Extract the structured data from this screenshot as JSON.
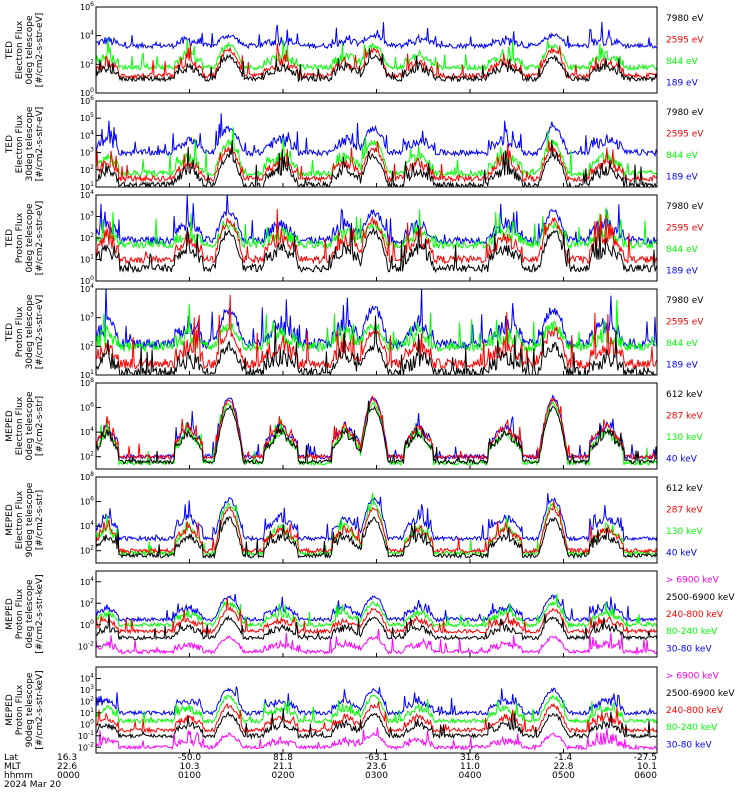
{
  "chart_data": {
    "type": "line",
    "colors": {
      "blue": "#0000ff",
      "red": "#ff0000",
      "green": "#00ff00",
      "black": "#000000",
      "magenta": "#ff00ff"
    },
    "x_ticks": [
      "0000",
      "0100",
      "0200",
      "0300",
      "0400",
      "0500",
      "0600"
    ],
    "footer": {
      "row_labels": [
        "Lat",
        "MLT",
        "hhmm"
      ],
      "date": "2024 Mar 20",
      "lat": [
        "16.3",
        "-50.0",
        "81.8",
        "-63.1",
        "31.6",
        "-1.4",
        "-27.5"
      ],
      "mlt": [
        "22.6",
        "10.3",
        "21.1",
        "23.6",
        "11.0",
        "22.8",
        "10.1"
      ],
      "hhmm": [
        "0000",
        "0100",
        "0200",
        "0300",
        "0400",
        "0500",
        "0600"
      ]
    },
    "panels": [
      {
        "ylabel": [
          "TED",
          "Electron Flux",
          "0deg telescope",
          "[#/cm2-s-str-eV]"
        ],
        "yticks": [
          {
            "exp": "6",
            "v": 6
          },
          {
            "exp": "4",
            "v": 4
          },
          {
            "exp": "2",
            "v": 2
          },
          {
            "exp": "0",
            "v": 0
          }
        ],
        "ylim": [
          0,
          6
        ],
        "legend": [
          {
            "text": "7980 eV",
            "color": "black"
          },
          {
            "text": "2595 eV",
            "color": "red"
          },
          {
            "text": "844 eV",
            "color": "green"
          },
          {
            "text": "189 eV",
            "color": "blue"
          }
        ],
        "series": [
          {
            "color": "blue",
            "base": 3.3,
            "peak": 4.0
          },
          {
            "color": "green",
            "base": 1.8,
            "peak": 3.3
          },
          {
            "color": "red",
            "base": 1.2,
            "peak": 3.0
          },
          {
            "color": "black",
            "base": 1.0,
            "peak": 2.5
          }
        ]
      },
      {
        "ylabel": [
          "TED",
          "Electron Flux",
          "30deg telescope",
          "[#/cm2-s-str-eV]"
        ],
        "yticks": [
          {
            "exp": "6",
            "v": 6
          },
          {
            "exp": "5",
            "v": 5
          },
          {
            "exp": "4",
            "v": 4
          },
          {
            "exp": "3",
            "v": 3
          },
          {
            "exp": "2",
            "v": 2
          },
          {
            "exp": "1",
            "v": 1
          }
        ],
        "ylim": [
          1,
          6
        ],
        "legend": [
          {
            "text": "7980 eV",
            "color": "black"
          },
          {
            "text": "2595 eV",
            "color": "red"
          },
          {
            "text": "844 eV",
            "color": "green"
          },
          {
            "text": "189 eV",
            "color": "blue"
          }
        ],
        "series": [
          {
            "color": "blue",
            "base": 3.0,
            "peak": 4.4
          },
          {
            "color": "green",
            "base": 1.8,
            "peak": 3.6
          },
          {
            "color": "red",
            "base": 1.5,
            "peak": 3.2
          },
          {
            "color": "black",
            "base": 1.1,
            "peak": 2.8
          }
        ]
      },
      {
        "ylabel": [
          "TED",
          "Proton Flux",
          "0deg telescope",
          "[#/cm2-s-str-eV]"
        ],
        "yticks": [
          {
            "exp": "4",
            "v": 4
          },
          {
            "exp": "3",
            "v": 3
          },
          {
            "exp": "2",
            "v": 2
          },
          {
            "exp": "1",
            "v": 1
          },
          {
            "exp": "0",
            "v": 0
          }
        ],
        "ylim": [
          0,
          4
        ],
        "legend": [
          {
            "text": "7980 eV",
            "color": "black"
          },
          {
            "text": "2595 eV",
            "color": "red"
          },
          {
            "text": "844 eV",
            "color": "green"
          },
          {
            "text": "189 eV",
            "color": "blue"
          }
        ],
        "series": [
          {
            "color": "blue",
            "base": 1.9,
            "peak": 3.2
          },
          {
            "color": "green",
            "base": 1.7,
            "peak": 2.6
          },
          {
            "color": "red",
            "base": 1.0,
            "peak": 2.8
          },
          {
            "color": "black",
            "base": 0.6,
            "peak": 2.3
          }
        ]
      },
      {
        "ylabel": [
          "TED",
          "Proton Flux",
          "30deg telescope",
          "[#/cm2-s-str-eV]"
        ],
        "yticks": [
          {
            "exp": "4",
            "v": 4
          },
          {
            "exp": "3",
            "v": 3
          },
          {
            "exp": "2",
            "v": 2
          },
          {
            "exp": "1",
            "v": 1
          }
        ],
        "ylim": [
          1,
          4
        ],
        "legend": [
          {
            "text": "7980 eV",
            "color": "black"
          },
          {
            "text": "2595 eV",
            "color": "red"
          },
          {
            "text": "844 eV",
            "color": "green"
          },
          {
            "text": "189 eV",
            "color": "blue"
          }
        ],
        "series": [
          {
            "color": "blue",
            "base": 2.1,
            "peak": 3.3
          },
          {
            "color": "green",
            "base": 2.0,
            "peak": 2.7
          },
          {
            "color": "red",
            "base": 1.4,
            "peak": 2.5
          },
          {
            "color": "black",
            "base": 1.1,
            "peak": 2.0
          }
        ]
      },
      {
        "ylabel": [
          "MEPED",
          "Electron Flux",
          "0deg telescope",
          "[#/cm2-s-str]"
        ],
        "yticks": [
          {
            "exp": "8",
            "v": 8
          },
          {
            "exp": "6",
            "v": 6
          },
          {
            "exp": "4",
            "v": 4
          },
          {
            "exp": "2",
            "v": 2
          }
        ],
        "ylim": [
          1,
          8
        ],
        "legend": [
          {
            "text": "612 keV",
            "color": "black"
          },
          {
            "text": "287 keV",
            "color": "red"
          },
          {
            "text": "130 keV",
            "color": "green"
          },
          {
            "text": "40 keV",
            "color": "blue"
          }
        ],
        "series": [
          {
            "color": "blue",
            "base": 2.0,
            "peak": 6.8
          },
          {
            "color": "green",
            "base": 1.5,
            "peak": 6.3
          },
          {
            "color": "red",
            "base": 2.0,
            "peak": 6.6
          },
          {
            "color": "black",
            "base": 1.6,
            "peak": 6.0
          }
        ]
      },
      {
        "ylabel": [
          "MEPED",
          "Electron Flux",
          "90deg telescope",
          "[#/cm2-s-str]"
        ],
        "yticks": [
          {
            "exp": "8",
            "v": 8
          },
          {
            "exp": "6",
            "v": 6
          },
          {
            "exp": "4",
            "v": 4
          },
          {
            "exp": "2",
            "v": 2
          }
        ],
        "ylim": [
          1,
          8
        ],
        "legend": [
          {
            "text": "612 keV",
            "color": "black"
          },
          {
            "text": "287 keV",
            "color": "red"
          },
          {
            "text": "130 keV",
            "color": "green"
          },
          {
            "text": "40 keV",
            "color": "blue"
          }
        ],
        "series": [
          {
            "color": "blue",
            "base": 3.0,
            "peak": 6.2
          },
          {
            "color": "green",
            "base": 1.8,
            "peak": 5.8
          },
          {
            "color": "red",
            "base": 2.0,
            "peak": 5.4
          },
          {
            "color": "black",
            "base": 1.6,
            "peak": 4.6
          }
        ]
      },
      {
        "ylabel": [
          "MEPED",
          "Proton Flux",
          "0deg telescope",
          "[#/cm2-s-str-keV]"
        ],
        "yticks": [
          {
            "exp": "4",
            "v": 4
          },
          {
            "exp": "2",
            "v": 2
          },
          {
            "exp": "0",
            "v": 0
          },
          {
            "exp": "-2",
            "v": -2
          }
        ],
        "ylim": [
          -3,
          5
        ],
        "legend": [
          {
            "text": "> 6900 keV",
            "color": "magenta"
          },
          {
            "text": "2500-6900 keV",
            "color": "black"
          },
          {
            "text": "240-800 keV",
            "color": "red"
          },
          {
            "text": "80-240 keV",
            "color": "green"
          },
          {
            "text": "30-80 keV",
            "color": "blue"
          }
        ],
        "series": [
          {
            "color": "blue",
            "base": 0.5,
            "peak": 2.6
          },
          {
            "color": "green",
            "base": 0.0,
            "peak": 2.0
          },
          {
            "color": "red",
            "base": -0.6,
            "peak": 1.4
          },
          {
            "color": "black",
            "base": -1.2,
            "peak": 0.6
          },
          {
            "color": "magenta",
            "base": -2.5,
            "peak": -1.2
          }
        ]
      },
      {
        "ylabel": [
          "MEPED",
          "Proton Flux",
          "90deg telescope",
          "[#/cm2-s-str-keV]"
        ],
        "yticks": [
          {
            "exp": "4",
            "v": 4
          },
          {
            "exp": "3",
            "v": 3
          },
          {
            "exp": "2",
            "v": 2
          },
          {
            "exp": "1",
            "v": 1
          },
          {
            "exp": "0",
            "v": 0
          },
          {
            "exp": "-1",
            "v": -1
          },
          {
            "exp": "-2",
            "v": -2
          }
        ],
        "ylim": [
          -2.5,
          5
        ],
        "legend": [
          {
            "text": "> 6900 keV",
            "color": "magenta"
          },
          {
            "text": "2500-6900 keV",
            "color": "black"
          },
          {
            "text": "240-800 keV",
            "color": "red"
          },
          {
            "text": "80-240 keV",
            "color": "green"
          },
          {
            "text": "30-80 keV",
            "color": "blue"
          }
        ],
        "series": [
          {
            "color": "blue",
            "base": 1.0,
            "peak": 3.0
          },
          {
            "color": "green",
            "base": 0.3,
            "peak": 2.4
          },
          {
            "color": "red",
            "base": -0.5,
            "peak": 1.6
          },
          {
            "color": "black",
            "base": -1.0,
            "peak": 0.9
          },
          {
            "color": "magenta",
            "base": -2.0,
            "peak": -0.9
          }
        ]
      }
    ]
  }
}
